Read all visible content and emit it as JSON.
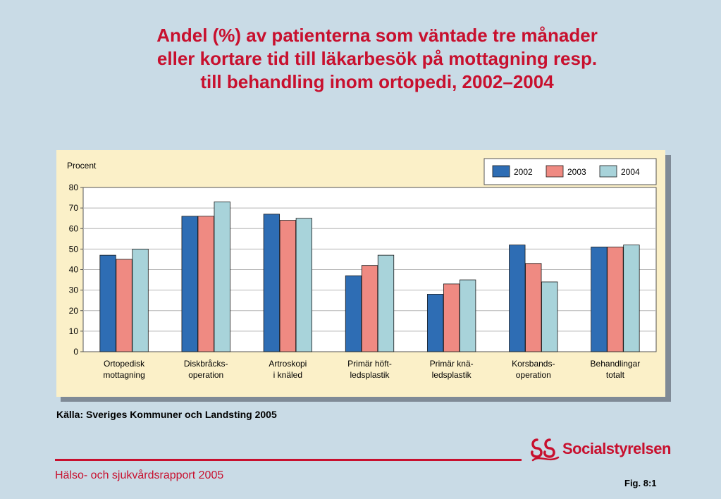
{
  "title": "Andel (%) av patienterna som väntade tre månader\neller kortare tid till läkarbesök på mottagning resp.\ntill behandling inom ortopedi, 2002–2004",
  "source": "Källa: Sveriges Kommuner och Landsting 2005",
  "footer": {
    "report": "Hälso- och sjukvårdsrapport 2005",
    "fig": "Fig. 8:1",
    "logo_text": "Socialstyrelsen"
  },
  "colors": {
    "title": "#c8102e",
    "s2002": "#2e6db4",
    "s2003": "#ef8a82",
    "s2004": "#a8d3da",
    "panel": "#fbf0c8",
    "plot": "#ffffff"
  },
  "chart_data": {
    "type": "bar",
    "ylabel": "Procent",
    "xlabel": "",
    "ylim": [
      0,
      80
    ],
    "yticks": [
      0,
      10,
      20,
      30,
      40,
      50,
      60,
      70,
      80
    ],
    "grid": true,
    "legend_position": "top-right",
    "categories": [
      [
        "Ortopedisk",
        "mottagning"
      ],
      [
        "Diskbråcks-",
        "operation"
      ],
      [
        "Artroskopi",
        "i knäled"
      ],
      [
        "Primär höft-",
        "ledsplastik"
      ],
      [
        "Primär knä-",
        "ledsplastik"
      ],
      [
        "Korsbands-",
        "operation"
      ],
      [
        "Behandlingar",
        "totalt"
      ]
    ],
    "series": [
      {
        "name": "2002",
        "color": "#2e6db4",
        "values": [
          47,
          66,
          67,
          37,
          28,
          52,
          51
        ]
      },
      {
        "name": "2003",
        "color": "#ef8a82",
        "values": [
          45,
          66,
          64,
          42,
          33,
          43,
          51
        ]
      },
      {
        "name": "2004",
        "color": "#a8d3da",
        "values": [
          50,
          73,
          65,
          47,
          35,
          34,
          52
        ]
      }
    ]
  }
}
